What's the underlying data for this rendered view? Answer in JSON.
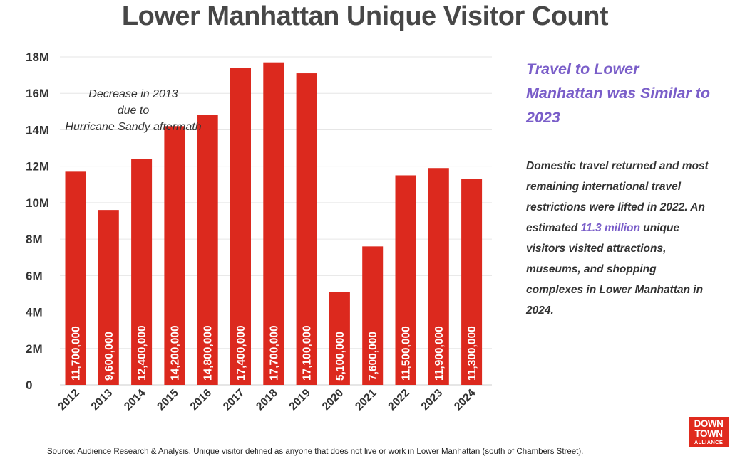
{
  "title": "Lower Manhattan Unique Visitor Count",
  "sidebar": {
    "heading": "Travel to Lower Manhattan was Similar to 2023",
    "body_before": "Domestic travel returned and most remaining international travel restrictions were lifted in 2022. An estimated ",
    "body_highlight": "11.3 million",
    "body_after": " unique visitors visited attractions, museums, and shopping complexes in Lower Manhattan in 2024."
  },
  "source": "Source: Audience Research & Analysis. Unique visitor defined as anyone that does not live or work in Lower Manhattan (south of Chambers Street).",
  "logo": {
    "line1": "DOWN",
    "line2": "TOWN",
    "line3": "ALLIANCE"
  },
  "colors": {
    "bar": "#dc291e",
    "accent": "#7a5ec9",
    "title": "#474747",
    "logo_bg": "#e02b1e"
  },
  "chart_data": {
    "type": "bar",
    "categories": [
      "2012",
      "2013",
      "2014",
      "2015",
      "2016",
      "2017",
      "2018",
      "2019",
      "2020",
      "2021",
      "2022",
      "2023",
      "2024"
    ],
    "values": [
      11700000,
      9600000,
      12400000,
      14200000,
      14800000,
      17400000,
      17700000,
      17100000,
      5100000,
      7600000,
      11500000,
      11900000,
      11300000
    ],
    "data_labels": [
      "11,700,000",
      "9,600,000",
      "12,400,000",
      "14,200,000",
      "14,800,000",
      "17,400,000",
      "17,700,000",
      "17,100,000",
      "5,100,000",
      "7,600,000",
      "11,500,000",
      "11,900,000",
      "11,300,000"
    ],
    "yticks": [
      0,
      2000000,
      4000000,
      6000000,
      8000000,
      10000000,
      12000000,
      14000000,
      16000000,
      18000000
    ],
    "ytick_labels": [
      "0",
      "2M",
      "4M",
      "6M",
      "8M",
      "10M",
      "12M",
      "14M",
      "16M",
      "18M"
    ],
    "ylim": [
      0,
      18000000
    ],
    "grid": true,
    "annotation": "Decrease in 2013 due to Hurricane Sandy aftermath",
    "xlabel": "",
    "ylabel": ""
  }
}
